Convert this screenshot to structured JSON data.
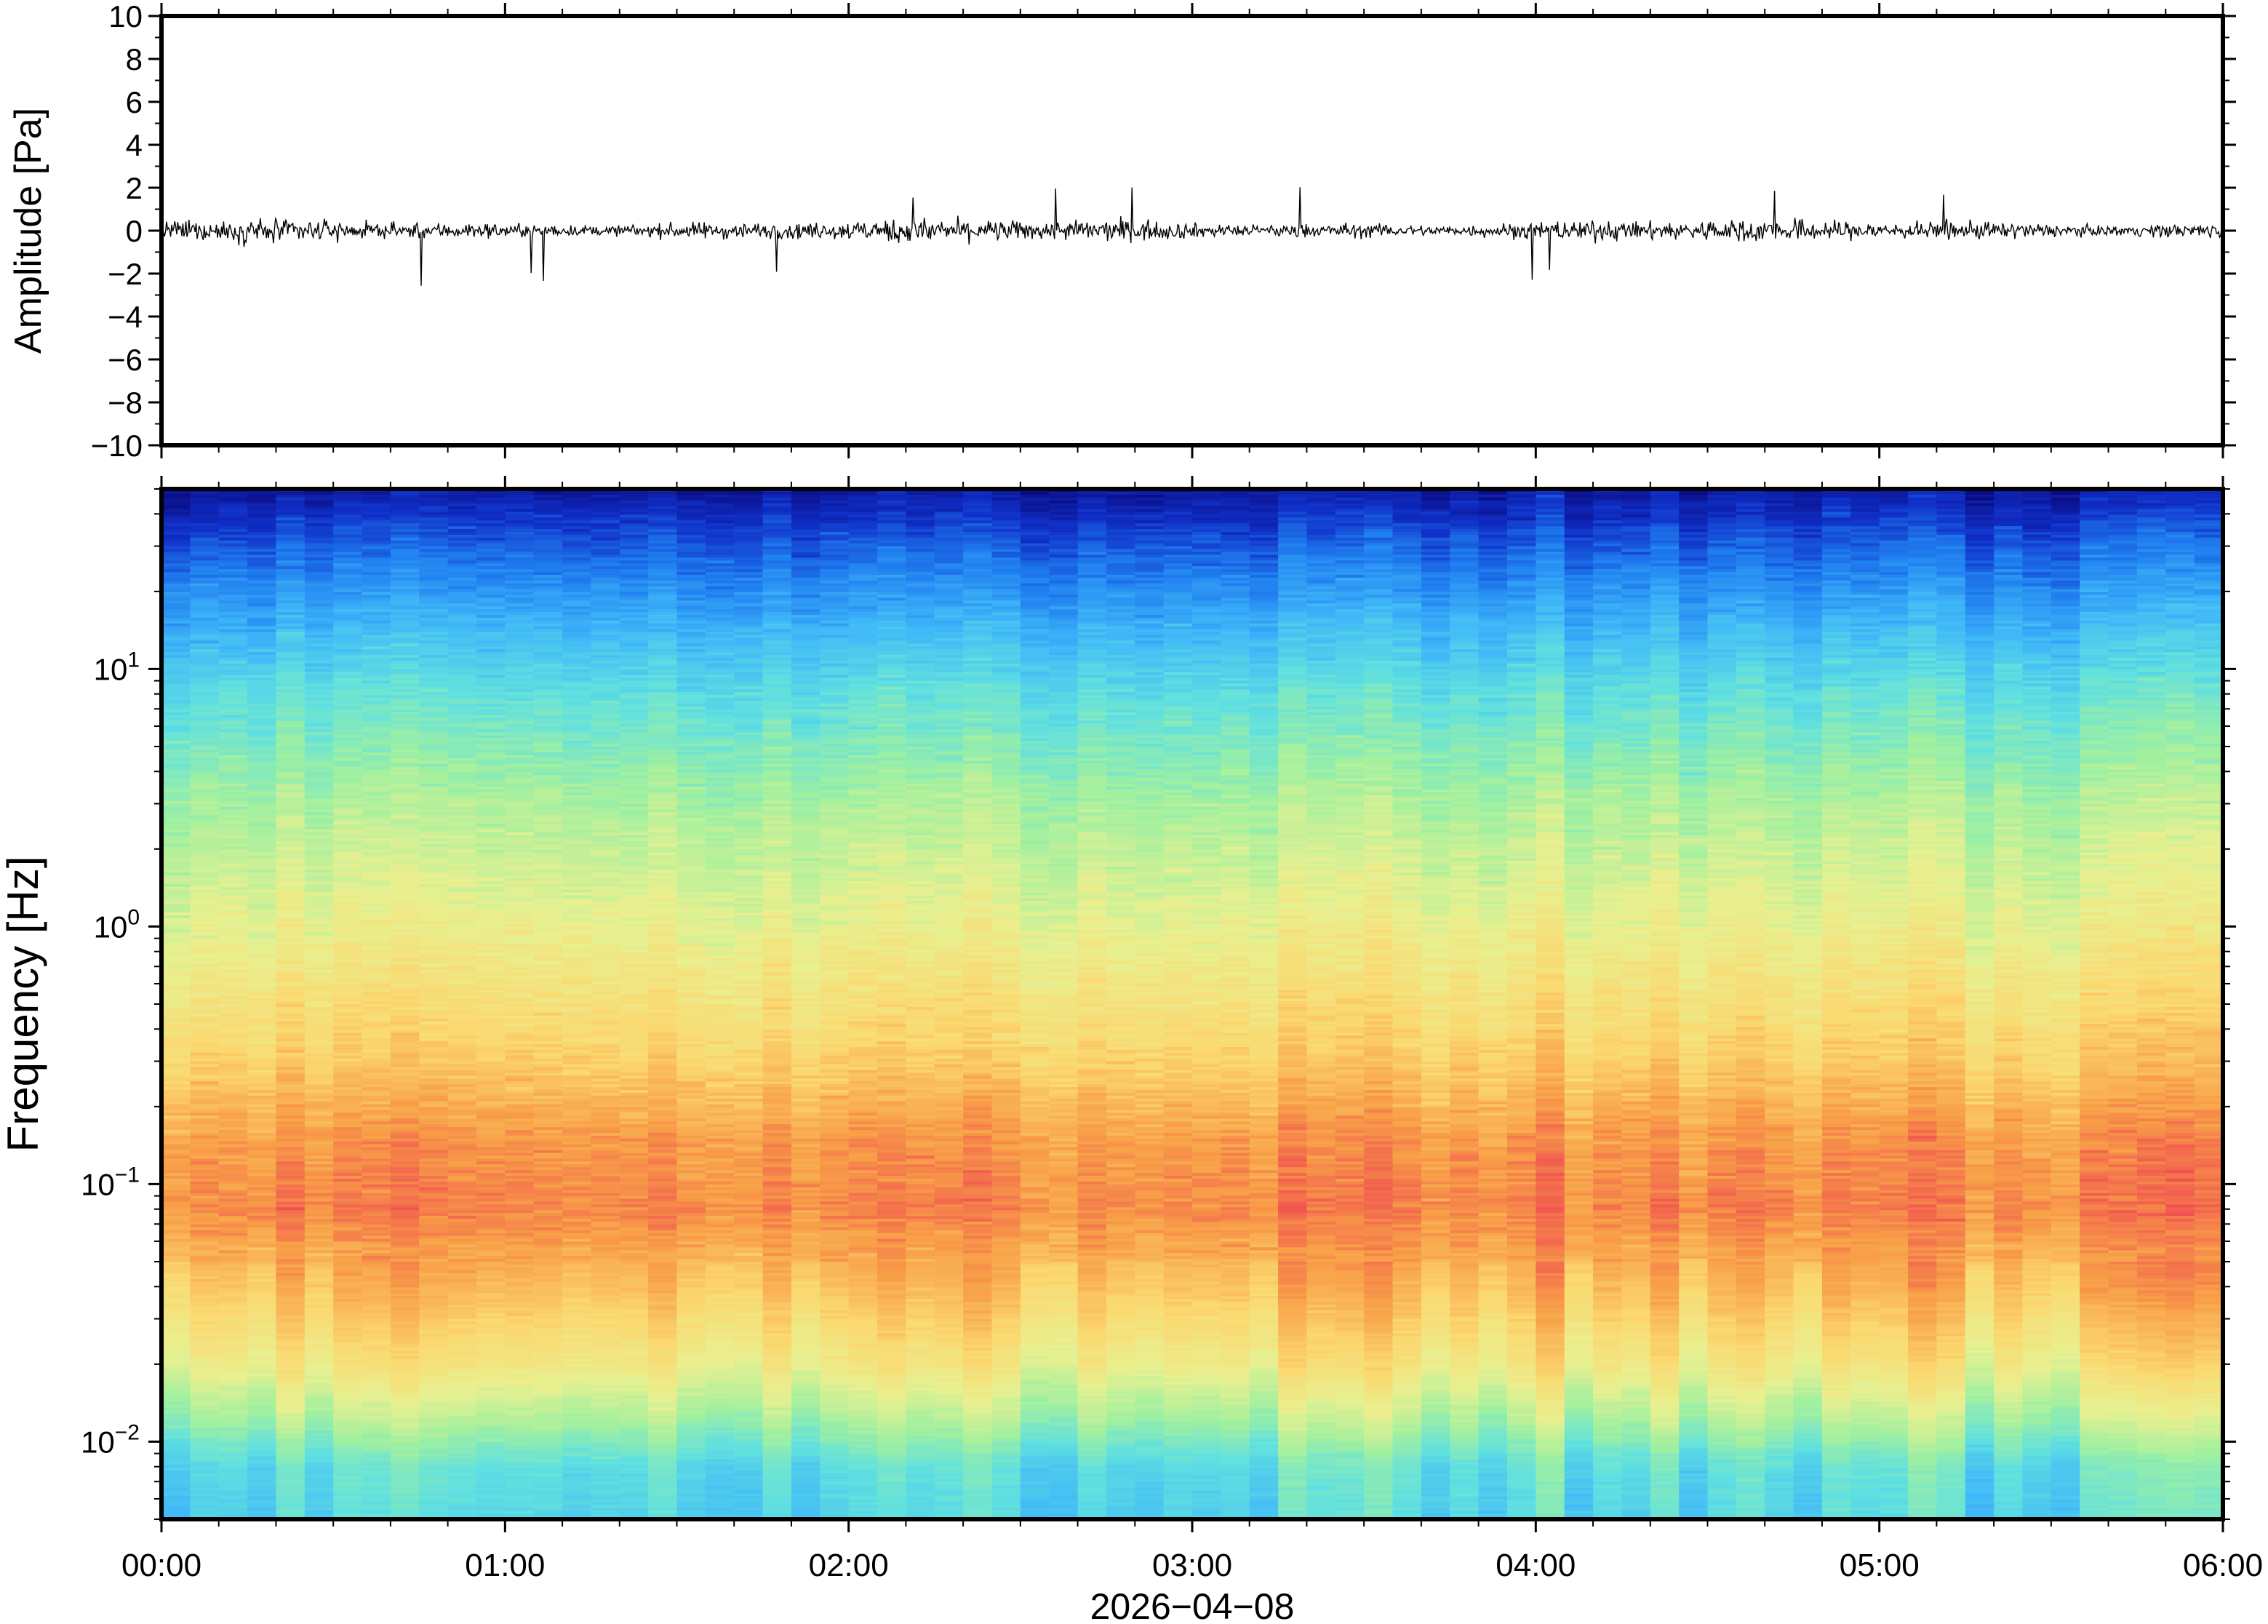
{
  "chart_data": [
    {
      "type": "line",
      "ylabel": "Amplitude [Pa]",
      "ylim": [
        -10,
        10
      ],
      "yticks": [
        10,
        8,
        6,
        4,
        2,
        0,
        -2,
        -4,
        -6,
        -8,
        -10
      ],
      "ytick_labels": [
        "10",
        "8",
        "6",
        "4",
        "2",
        "0",
        "−2",
        "−4",
        "−6",
        "−8",
        "−10"
      ],
      "xlim_hours": [
        0,
        6
      ],
      "grid": false,
      "series": [
        {
          "typical_range_pa": [
            -1.0,
            1.0
          ],
          "peak_max_pa": 2.2,
          "peak_min_pa": -2.6
        }
      ],
      "style": {
        "line_color": "#000000"
      }
    },
    {
      "type": "heatmap",
      "ylabel": "Frequency [Hz]",
      "xlabel": "2026−04−08",
      "y_scale": "log",
      "ylim_hz": [
        0.005,
        50
      ],
      "xlim_hours": [
        0,
        6
      ],
      "grid": false,
      "yticks_hz": [
        10,
        1,
        0.1,
        0.01
      ],
      "ytick_labels": [
        {
          "base": "10",
          "exp": "1"
        },
        {
          "base": "10",
          "exp": "0"
        },
        {
          "base": "10",
          "exp": "−1"
        },
        {
          "base": "10",
          "exp": "−2"
        }
      ],
      "xtick_labels": [
        "00:00",
        "01:00",
        "02:00",
        "03:00",
        "04:00",
        "05:00",
        "06:00"
      ],
      "colormap": [
        "#0a0a80",
        "#1030c8",
        "#2080f0",
        "#40b8f8",
        "#60e0e0",
        "#a0f0a0",
        "#e8f090",
        "#fbd870",
        "#f8a048",
        "#f05050"
      ],
      "band_profile_hz": [
        {
          "freq_hz": 0.005,
          "level": 0.42
        },
        {
          "freq_hz": 0.008,
          "level": 0.45
        },
        {
          "freq_hz": 0.012,
          "level": 0.58
        },
        {
          "freq_hz": 0.02,
          "level": 0.72
        },
        {
          "freq_hz": 0.04,
          "level": 0.84
        },
        {
          "freq_hz": 0.08,
          "level": 0.93
        },
        {
          "freq_hz": 0.15,
          "level": 0.9
        },
        {
          "freq_hz": 0.3,
          "level": 0.8
        },
        {
          "freq_hz": 1,
          "level": 0.68
        },
        {
          "freq_hz": 3,
          "level": 0.58
        },
        {
          "freq_hz": 8,
          "level": 0.45
        },
        {
          "freq_hz": 15,
          "level": 0.33
        },
        {
          "freq_hz": 30,
          "level": 0.18
        },
        {
          "freq_hz": 50,
          "level": 0.05
        }
      ]
    }
  ]
}
